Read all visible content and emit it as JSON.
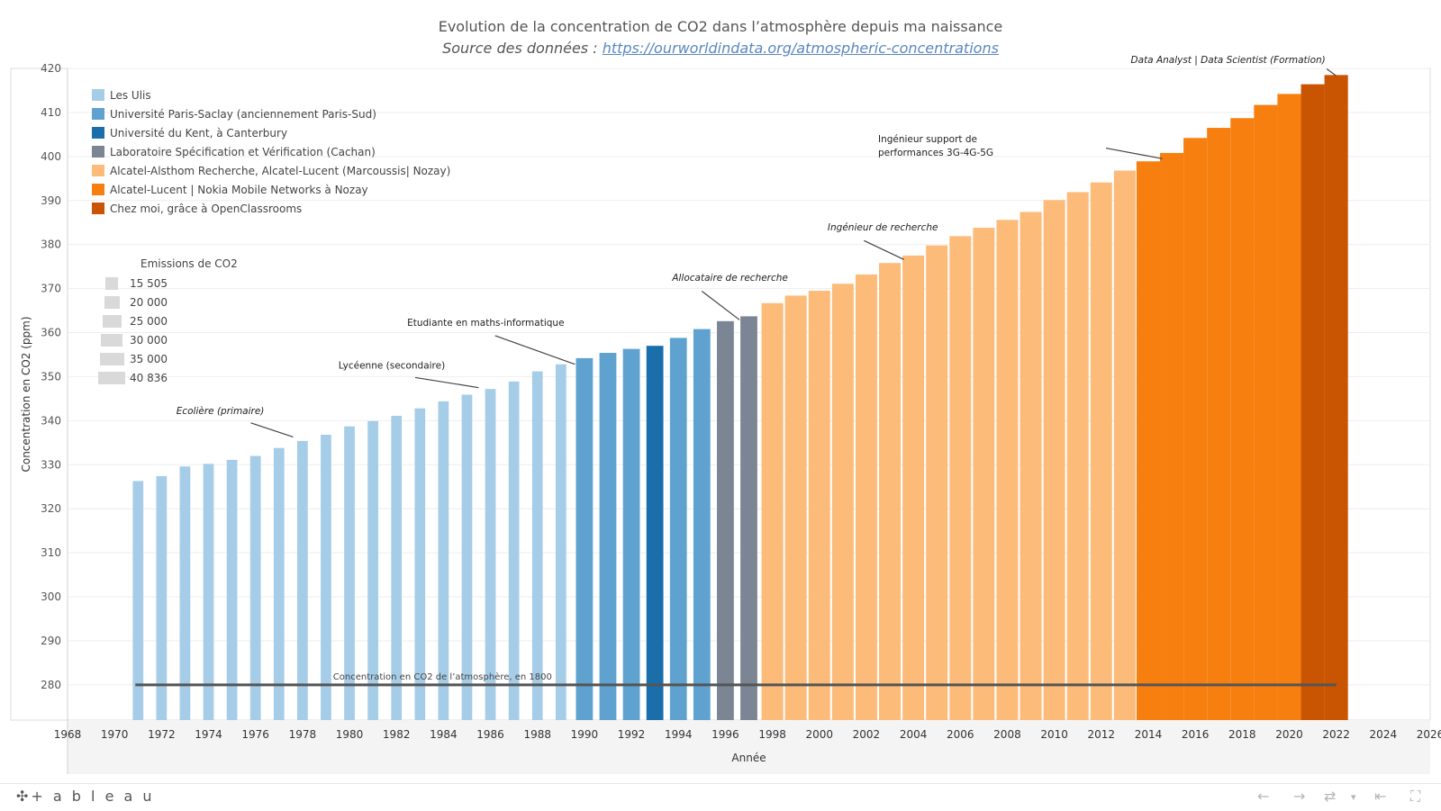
{
  "title": "Evolution de la concentration de CO2 dans l’atmosphère depuis ma naissance",
  "subtitle_prefix": "Source des données : ",
  "subtitle_link": "https://ourworldindata.org/atmospheric-concentrations",
  "colors": {
    "Les Ulis": "#a6cde8",
    "Université Paris-Saclay (anciennement Paris-Sud)": "#5fa2d0",
    "Université du Kent, à Canterbury": "#1a6fab",
    "Laboratoire Spécification et Vérification (Cachan)": "#7b8593",
    "Alcatel-Alsthom Recherche, Alcatel-Lucent (Marcoussis| Nozay)": "#fdbb7a",
    "Alcatel-Lucent | Nokia Mobile Networks à Nozay": "#f77f10",
    "Chez moi, grâce à OpenClassrooms": "#c95402",
    "reference_line": "#555555",
    "grid": "#eeeeee"
  },
  "size_legend": {
    "title": "Emissions de CO2",
    "items": [
      "15 505",
      "20 000",
      "25 000",
      "30 000",
      "35 000",
      "40 836"
    ]
  },
  "footer": {
    "brand": "+ a b l e a u",
    "brand_icon": "tableau-logo-icon",
    "buttons": [
      "undo-icon",
      "redo-icon",
      "revert-icon",
      "dropdown-icon",
      "reset-icon",
      "fullscreen-icon"
    ]
  },
  "chart_data": {
    "type": "bar",
    "title": "Evolution de la concentration de CO2 dans l’atmosphère depuis ma naissance",
    "xlabel": "Année",
    "ylabel": "Concentration en CO2 (ppm)",
    "ylim": [
      272,
      420
    ],
    "yticks": [
      280,
      290,
      300,
      310,
      320,
      330,
      340,
      350,
      360,
      370,
      380,
      390,
      400,
      410,
      420
    ],
    "xlim": [
      1968,
      2026
    ],
    "xticks": [
      1968,
      1970,
      1972,
      1974,
      1976,
      1978,
      1980,
      1982,
      1984,
      1986,
      1988,
      1990,
      1992,
      1994,
      1996,
      1998,
      2000,
      2002,
      2004,
      2006,
      2008,
      2010,
      2012,
      2014,
      2016,
      2018,
      2020,
      2022,
      2024,
      2026
    ],
    "grid": true,
    "legend_position": "top-left",
    "series": [
      {
        "name": "Les Ulis",
        "x": [
          1971,
          1972,
          1973,
          1974,
          1975,
          1976,
          1977,
          1978,
          1979,
          1980,
          1981,
          1982,
          1983,
          1984,
          1985,
          1986,
          1987,
          1988,
          1989
        ],
        "values": [
          326.3,
          327.4,
          329.6,
          330.2,
          331.1,
          332.0,
          333.8,
          335.4,
          336.8,
          338.7,
          339.9,
          341.1,
          342.8,
          344.4,
          345.9,
          347.2,
          348.9,
          351.2,
          352.8
        ]
      },
      {
        "name": "Université Paris-Saclay (anciennement Paris-Sud)",
        "x": [
          1990,
          1991,
          1992
        ],
        "values": [
          354.2,
          355.4,
          356.3
        ]
      },
      {
        "name": "Université du Kent, à Canterbury",
        "x": [
          1993
        ],
        "values": [
          357.0
        ]
      },
      {
        "name": "Université Paris-Saclay (anciennement Paris-Sud)",
        "x": [
          1994,
          1995
        ],
        "values": [
          358.8,
          360.8
        ]
      },
      {
        "name": "Laboratoire Spécification et Vérification (Cachan)",
        "x": [
          1996,
          1997
        ],
        "values": [
          362.6,
          363.7
        ]
      },
      {
        "name": "Alcatel-Alsthom Recherche, Alcatel-Lucent (Marcoussis| Nozay)",
        "x": [
          1998,
          1999,
          2000,
          2001,
          2002,
          2003,
          2004,
          2005,
          2006,
          2007,
          2008,
          2009,
          2010,
          2011,
          2012,
          2013
        ],
        "values": [
          366.7,
          368.4,
          369.5,
          371.1,
          373.2,
          375.8,
          377.5,
          379.8,
          381.9,
          383.8,
          385.6,
          387.4,
          390.1,
          391.9,
          394.1,
          396.8
        ]
      },
      {
        "name": "Alcatel-Lucent | Nokia Mobile Networks à Nozay",
        "x": [
          2014,
          2015,
          2016,
          2017,
          2018,
          2019,
          2020
        ],
        "values": [
          398.9,
          400.8,
          404.2,
          406.5,
          408.7,
          411.7,
          414.2
        ]
      },
      {
        "name": "Chez moi, grâce à OpenClassrooms",
        "x": [
          2021,
          2022
        ],
        "values": [
          416.4,
          418.5
        ]
      }
    ],
    "reference_line": {
      "value": 280,
      "from": 1971,
      "to": 2022,
      "label": "Concentration en CO2 de l’atmosphère, en 1800"
    },
    "annotations": [
      {
        "text": "Ecolière (primaire)",
        "year": 1978,
        "italic": true
      },
      {
        "text": "Lycéenne (secondaire)",
        "year": 1985,
        "italic": false
      },
      {
        "text": "Etudiante en maths-informatique",
        "year": 1989,
        "italic": false
      },
      {
        "text": "Allocataire de recherche",
        "year": 1997,
        "italic": true
      },
      {
        "text": "Ingénieur de recherche",
        "year": 2004,
        "italic": true
      },
      {
        "text": "Ingénieur support de",
        "text2": "performances 3G-4G-5G",
        "year": 2014,
        "italic": false
      },
      {
        "text": "Data Analyst | Data Scientist (Formation)",
        "year": 2022,
        "italic": true
      }
    ]
  }
}
